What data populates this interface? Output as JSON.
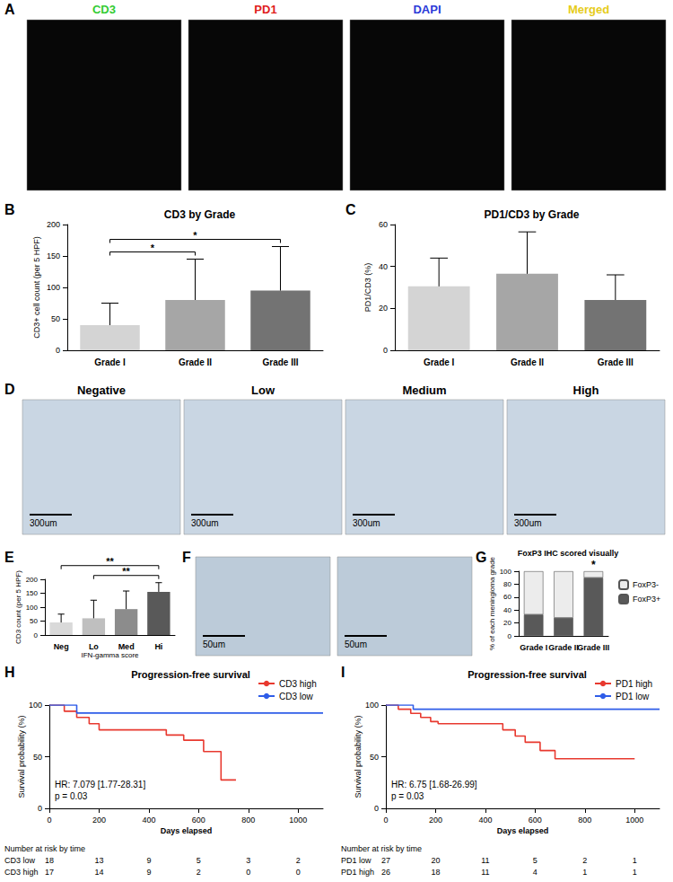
{
  "image_panels": [
    {
      "letter": "A",
      "images": [
        {
          "title": "CD3",
          "color": "#33cc33"
        },
        {
          "title": "PD1",
          "color": "#e02020"
        },
        {
          "title": "DAPI",
          "color": "#2a3ad8"
        },
        {
          "title": "Merged",
          "color": "#e6cc1a"
        }
      ]
    },
    {
      "letter": "D",
      "images": [
        {
          "title": "Negative",
          "scale_bar": "300um"
        },
        {
          "title": "Low",
          "scale_bar": "300um"
        },
        {
          "title": "Medium",
          "scale_bar": "300um"
        },
        {
          "title": "High",
          "scale_bar": "300um"
        }
      ]
    },
    {
      "letter": "F",
      "images": [
        {
          "scale_bar": "50um"
        },
        {
          "scale_bar": "50um"
        }
      ]
    }
  ],
  "chart_data": [
    {
      "letter": "B",
      "type": "bar",
      "title": "CD3 by Grade",
      "y_label": "CD3+ cell count (per 5 HPF)",
      "categories": [
        "Grade I",
        "Grade II",
        "Grade III"
      ],
      "values": [
        40,
        80,
        95
      ],
      "errors": [
        35,
        65,
        70
      ],
      "colors": [
        "#d4d4d4",
        "#a6a6a6",
        "#737373"
      ],
      "ylim": [
        0,
        200
      ],
      "yticks": [
        0,
        50,
        100,
        150,
        200
      ],
      "grid": false,
      "significance": [
        {
          "from": "Grade I",
          "to": "Grade II",
          "label": "*"
        },
        {
          "from": "Grade I",
          "to": "Grade III",
          "label": "*"
        }
      ]
    },
    {
      "letter": "C",
      "type": "bar",
      "title": "PD1/CD3 by Grade",
      "y_label": "PD1/CD3 (%)",
      "categories": [
        "Grade I",
        "Grade II",
        "Grade III"
      ],
      "values": [
        30.5,
        36.5,
        24
      ],
      "errors": [
        13.5,
        20,
        12
      ],
      "colors": [
        "#d4d4d4",
        "#a6a6a6",
        "#737373"
      ],
      "ylim": [
        0,
        60
      ],
      "yticks": [
        0,
        20,
        40,
        60
      ],
      "grid": false
    },
    {
      "letter": "E",
      "type": "bar",
      "x_label": "IFN-gamma score",
      "y_label": "CD3 count (per 5 HPF)",
      "categories": [
        "Neg",
        "Lo",
        "Med",
        "Hi"
      ],
      "values": [
        45,
        60,
        93,
        155
      ],
      "errors": [
        30,
        65,
        65,
        33
      ],
      "colors": [
        "#d9d9d9",
        "#bfbfbf",
        "#8c8c8c",
        "#595959"
      ],
      "ylim": [
        0,
        200
      ],
      "yticks": [
        0,
        50,
        100,
        150,
        200
      ],
      "grid": false,
      "significance": [
        {
          "from": "Lo",
          "to": "Hi",
          "label": "**"
        },
        {
          "from": "Neg",
          "to": "Hi",
          "label": "**"
        }
      ]
    },
    {
      "letter": "G",
      "type": "bar",
      "stacked": true,
      "title": "FoxP3 IHC scored visually",
      "y_label": "% of each meningioma grade",
      "categories": [
        "Grade I",
        "Grade II",
        "Grade III"
      ],
      "series": [
        {
          "name": "FoxP3-",
          "color": "#ececec",
          "values": [
            67,
            72,
            10
          ]
        },
        {
          "name": "FoxP3+",
          "color": "#595959",
          "values": [
            33,
            28,
            90
          ]
        }
      ],
      "ylim": [
        0,
        100
      ],
      "yticks": [
        0,
        20,
        40,
        60,
        80,
        100
      ],
      "grid": false,
      "legend": "right",
      "significance": [
        {
          "category": "Grade III",
          "label": "*"
        }
      ]
    },
    {
      "letter": "H",
      "type": "line",
      "line_style": "step",
      "title": "Progression-free survival",
      "x_label": "Days elapsed",
      "y_label": "Survival probability (%)",
      "series": [
        {
          "name": "CD3 high",
          "color": "#e8392f",
          "x": [
            0,
            60,
            110,
            160,
            200,
            470,
            540,
            620,
            690,
            750
          ],
          "values": [
            100,
            94,
            88,
            82,
            76,
            71,
            66,
            55,
            27.5,
            27.5
          ]
        },
        {
          "name": "CD3 low",
          "color": "#2f5de8",
          "x": [
            0,
            110,
            1100
          ],
          "values": [
            100,
            92.3,
            92.3
          ]
        }
      ],
      "xlim": [
        0,
        1100
      ],
      "xticks": [
        0,
        200,
        400,
        600,
        800,
        1000
      ],
      "ylim": [
        0,
        100
      ],
      "yticks": [
        0,
        50,
        100
      ],
      "grid": false,
      "legend": "upper right",
      "annotations": [
        "HR: 7.079 [1.77-28.31]",
        "p = 0.03"
      ],
      "risk_table": {
        "title": "Number at risk by time",
        "times": [
          0,
          200,
          400,
          600,
          800,
          1000
        ],
        "rows": [
          {
            "name": "CD3 low",
            "counts": [
              18,
              13,
              9,
              5,
              3,
              2
            ]
          },
          {
            "name": "CD3 high",
            "counts": [
              17,
              14,
              9,
              2,
              0,
              0
            ]
          }
        ]
      }
    },
    {
      "letter": "I",
      "type": "line",
      "line_style": "step",
      "title": "Progression-free survival",
      "x_label": "Days elapsed",
      "y_label": "Survival probability (%)",
      "series": [
        {
          "name": "PD1 high",
          "color": "#e8392f",
          "x": [
            0,
            50,
            100,
            140,
            180,
            210,
            470,
            520,
            560,
            620,
            680,
            1000
          ],
          "values": [
            100,
            96,
            92,
            88,
            84,
            82,
            76,
            70,
            64,
            56,
            48,
            48
          ]
        },
        {
          "name": "PD1 low",
          "color": "#2f5de8",
          "x": [
            0,
            110,
            1100
          ],
          "values": [
            100,
            96,
            96
          ]
        }
      ],
      "xlim": [
        0,
        1100
      ],
      "xticks": [
        0,
        200,
        400,
        600,
        800,
        1000
      ],
      "ylim": [
        0,
        100
      ],
      "yticks": [
        0,
        50,
        100
      ],
      "grid": false,
      "legend": "upper right",
      "annotations": [
        "HR: 6.75 [1.68-26.99]",
        "p = 0.03"
      ],
      "risk_table": {
        "title": "Number at risk by time",
        "times": [
          0,
          200,
          400,
          600,
          800,
          1000
        ],
        "rows": [
          {
            "name": "PD1 low",
            "counts": [
              27,
              20,
              11,
              5,
              2,
              1
            ]
          },
          {
            "name": "PD1 high",
            "counts": [
              26,
              18,
              11,
              4,
              1,
              1
            ]
          }
        ]
      }
    }
  ]
}
